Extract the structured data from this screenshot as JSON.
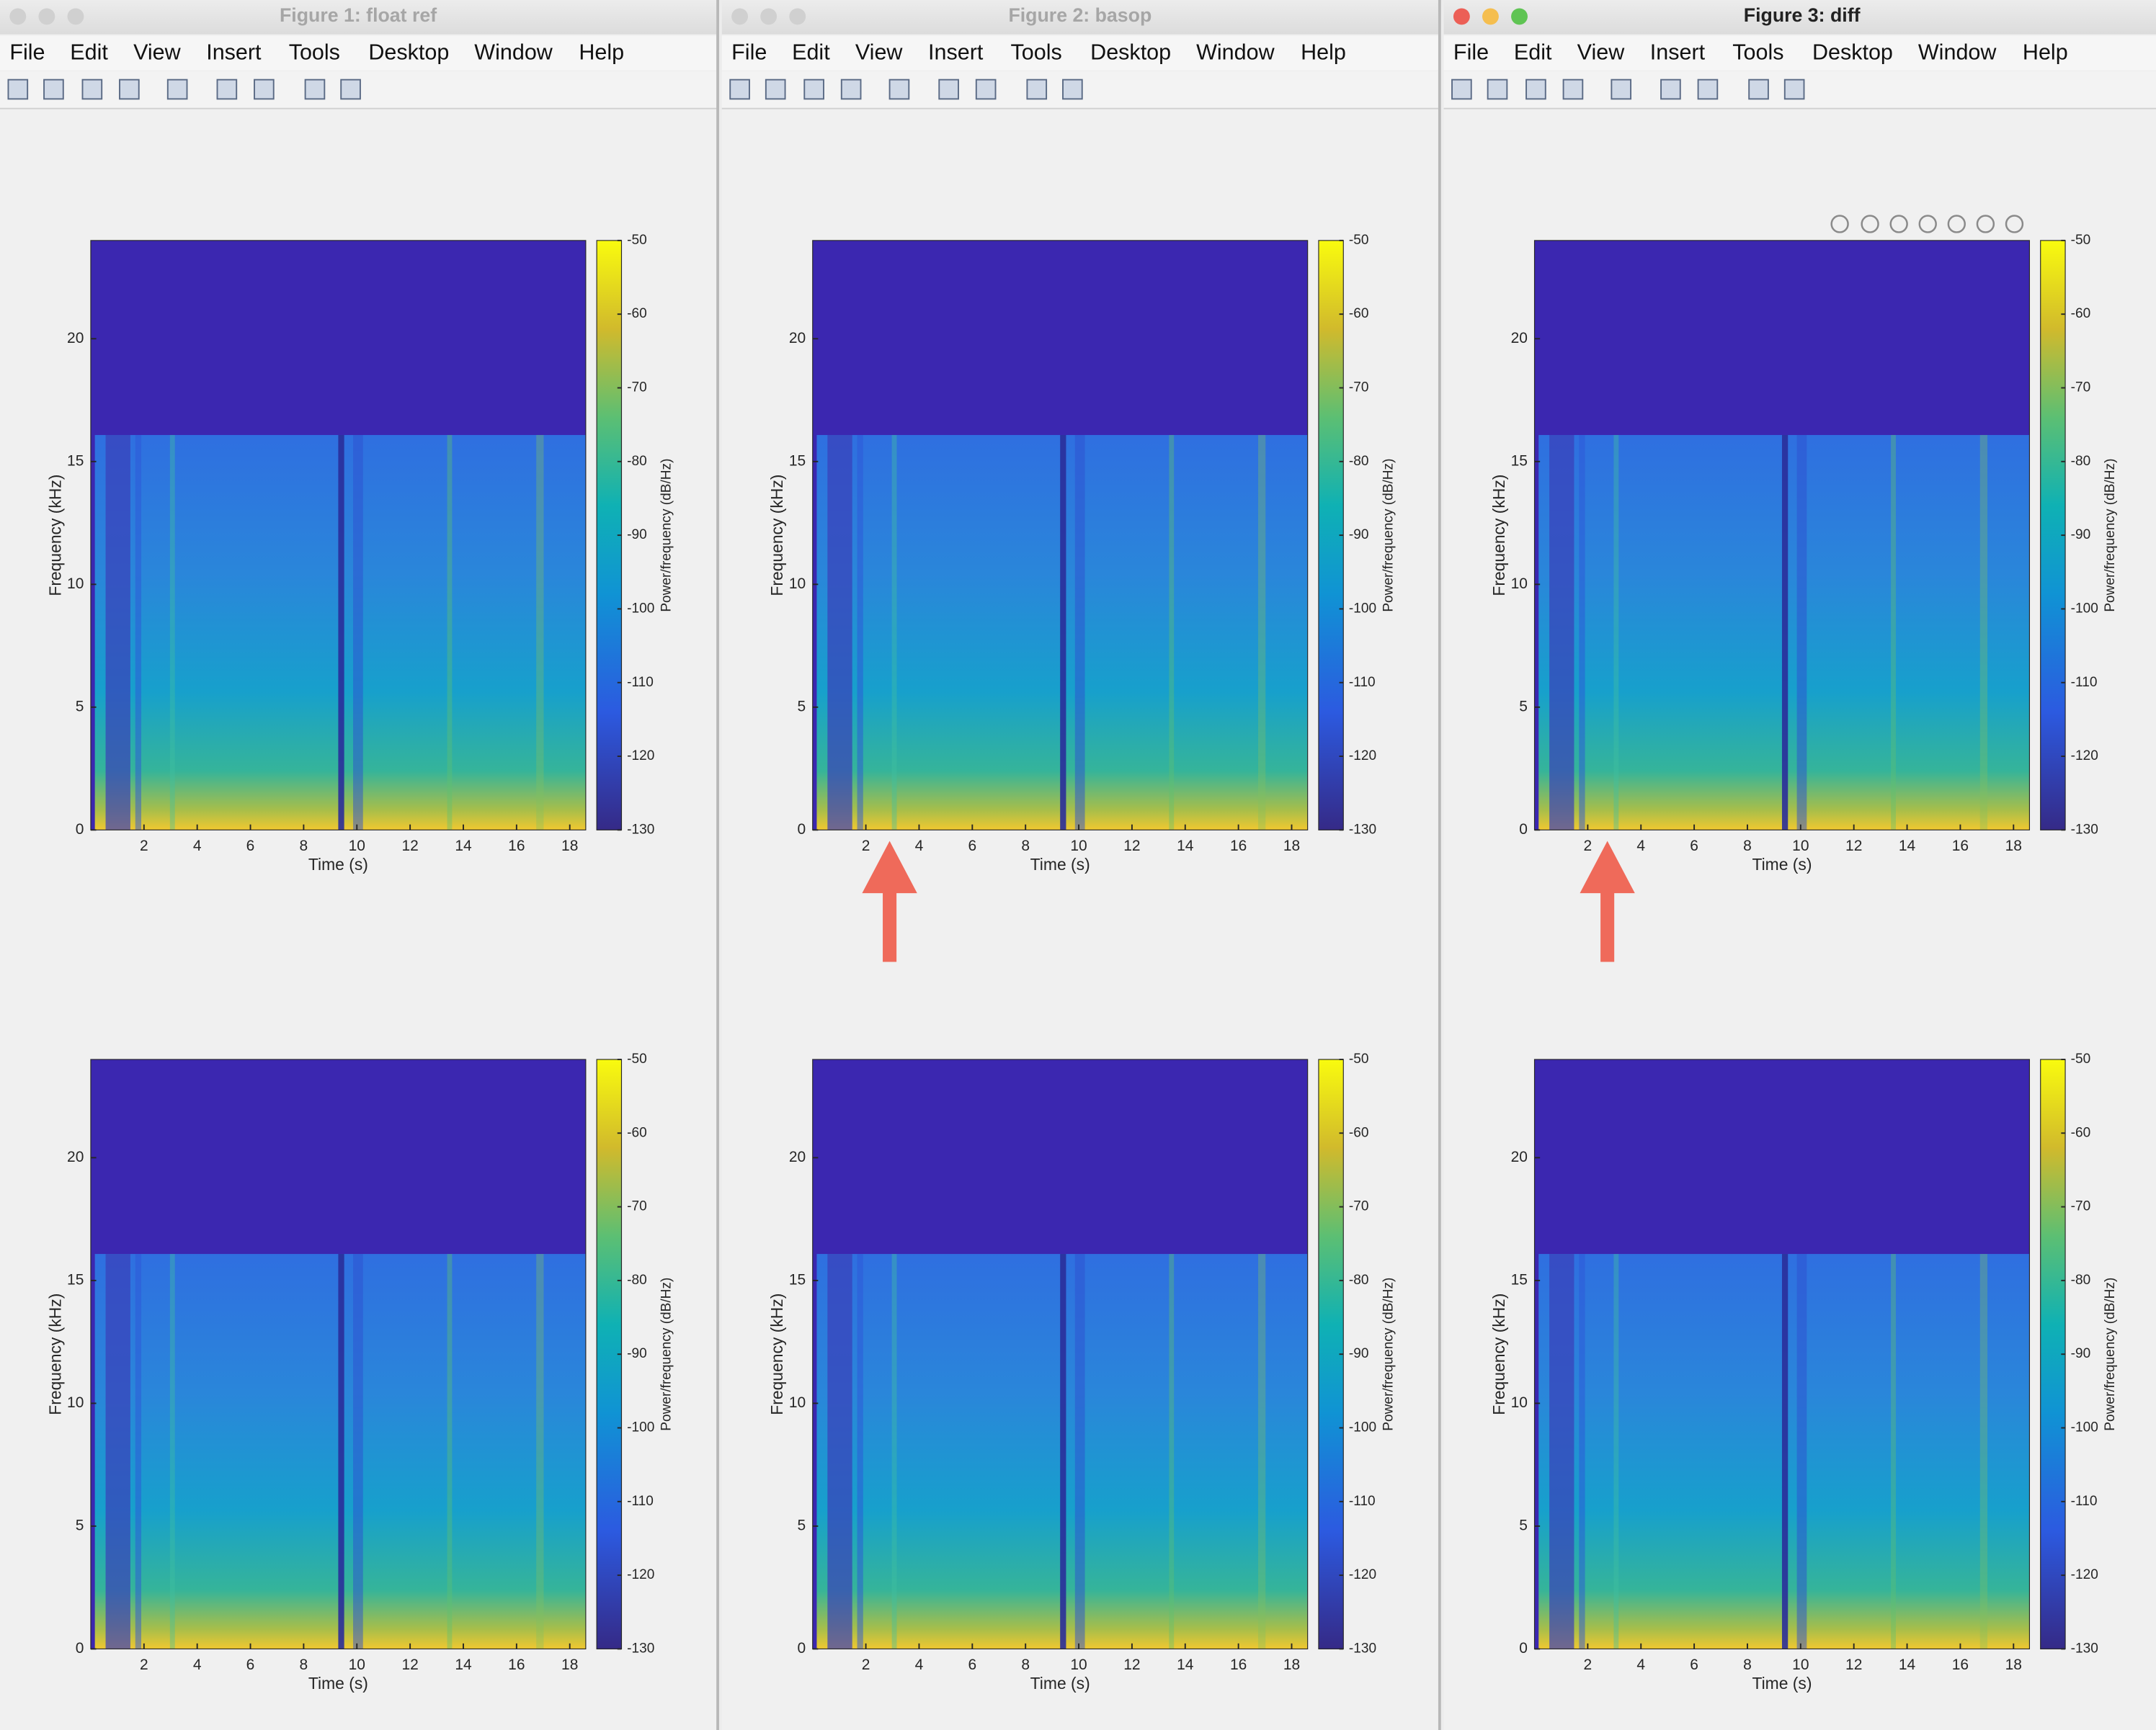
{
  "windows": [
    {
      "title": "Figure 1: float ref",
      "menu": [
        "File",
        "Edit",
        "View",
        "Insert",
        "Tools",
        "Desktop",
        "Window",
        "Help"
      ],
      "plots": [
        {
          "xlabel": "Time (s)",
          "ylabel": "Frequency (kHz)",
          "colorbar_label": "Power/frequency (dB/Hz)",
          "xlim": [
            0,
            18.6
          ],
          "xticks": [
            2,
            4,
            6,
            8,
            10,
            12,
            14,
            16,
            18
          ],
          "ylim": [
            0,
            24
          ],
          "yticks": [
            0,
            5,
            10,
            15,
            20
          ],
          "clim": [
            -130,
            -50
          ],
          "cticks": [
            -50,
            -60,
            -70,
            -80,
            -90,
            -100,
            -110,
            -120,
            -130
          ]
        },
        {
          "xlabel": "Time (s)",
          "ylabel": "Frequency (kHz)",
          "colorbar_label": "Power/frequency (dB/Hz)",
          "xlim": [
            0,
            18.6
          ],
          "xticks": [
            2,
            4,
            6,
            8,
            10,
            12,
            14,
            16,
            18
          ],
          "ylim": [
            0,
            24
          ],
          "yticks": [
            0,
            5,
            10,
            15,
            20
          ],
          "clim": [
            -130,
            -50
          ],
          "cticks": [
            -50,
            -60,
            -70,
            -80,
            -90,
            -100,
            -110,
            -120,
            -130
          ]
        }
      ]
    },
    {
      "title": "Figure 2: basop",
      "menu": [
        "File",
        "Edit",
        "View",
        "Insert",
        "Tools",
        "Desktop",
        "Window",
        "Help"
      ],
      "plots": [
        {
          "xlabel": "Time (s)",
          "ylabel": "Frequency (kHz)",
          "colorbar_label": "Power/frequency (dB/Hz)",
          "xlim": [
            0,
            18.6
          ],
          "xticks": [
            2,
            4,
            6,
            8,
            10,
            12,
            14,
            16,
            18
          ],
          "ylim": [
            0,
            24
          ],
          "yticks": [
            0,
            5,
            10,
            15,
            20
          ],
          "clim": [
            -130,
            -50
          ],
          "cticks": [
            -50,
            -60,
            -70,
            -80,
            -90,
            -100,
            -110,
            -120,
            -130
          ]
        },
        {
          "xlabel": "Time (s)",
          "ylabel": "Frequency (kHz)",
          "colorbar_label": "Power/frequency (dB/Hz)",
          "xlim": [
            0,
            18.6
          ],
          "xticks": [
            2,
            4,
            6,
            8,
            10,
            12,
            14,
            16,
            18
          ],
          "ylim": [
            0,
            24
          ],
          "yticks": [
            0,
            5,
            10,
            15,
            20
          ],
          "clim": [
            -130,
            -50
          ],
          "cticks": [
            -50,
            -60,
            -70,
            -80,
            -90,
            -100,
            -110,
            -120,
            -130
          ]
        }
      ]
    },
    {
      "title": "Figure 3: diff",
      "menu": [
        "File",
        "Edit",
        "View",
        "Insert",
        "Tools",
        "Desktop",
        "Window",
        "Help"
      ],
      "plots": [
        {
          "xlabel": "Time (s)",
          "ylabel": "Frequency (kHz)",
          "colorbar_label": "Power/frequency (dB/Hz)",
          "xlim": [
            0,
            18.6
          ],
          "xticks": [
            2,
            4,
            6,
            8,
            10,
            12,
            14,
            16,
            18
          ],
          "ylim": [
            0,
            24
          ],
          "yticks": [
            0,
            5,
            10,
            15,
            20
          ],
          "clim": [
            -130,
            -50
          ],
          "cticks": [
            -50,
            -60,
            -70,
            -80,
            -90,
            -100,
            -110,
            -120,
            -130
          ]
        },
        {
          "xlabel": "Time (s)",
          "ylabel": "Frequency (kHz)",
          "colorbar_label": "Power/frequency (dB/Hz)",
          "xlim": [
            0,
            18.6
          ],
          "xticks": [
            2,
            4,
            6,
            8,
            10,
            12,
            14,
            16,
            18
          ],
          "ylim": [
            0,
            24
          ],
          "yticks": [
            0,
            5,
            10,
            15,
            20
          ],
          "clim": [
            -130,
            -50
          ],
          "cticks": [
            -50,
            -60,
            -70,
            -80,
            -90,
            -100,
            -110,
            -120,
            -130
          ]
        }
      ]
    }
  ]
}
